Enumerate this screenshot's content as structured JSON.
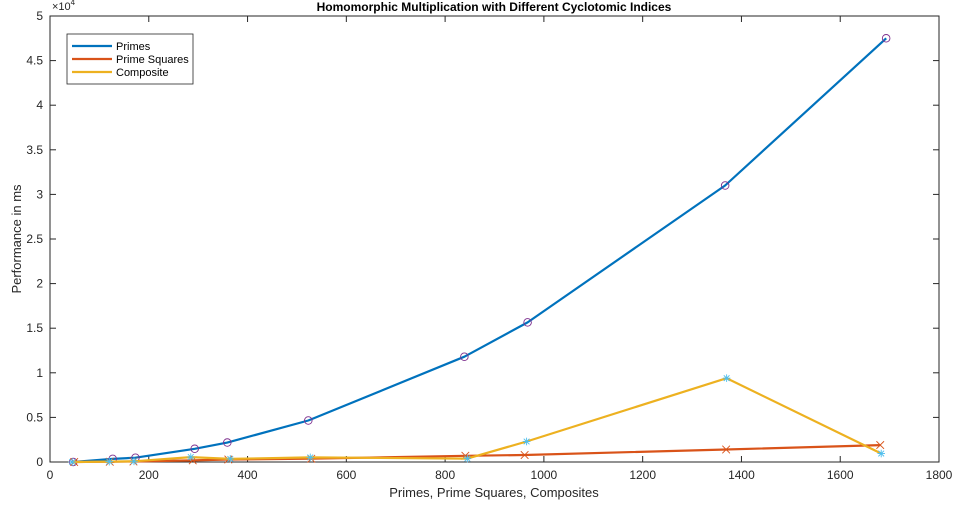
{
  "chart_data": {
    "type": "line",
    "title": "Homomorphic Multiplication with Different Cyclotomic Indices",
    "xlabel": "Primes, Prime Squares, Composites",
    "ylabel": "Performance in ms",
    "xlim": [
      0,
      1800
    ],
    "ylim": [
      0,
      50000
    ],
    "x_ticks": [
      0,
      200,
      400,
      600,
      800,
      1000,
      1200,
      1400,
      1600,
      1800
    ],
    "y_ticks": [
      0,
      5000,
      10000,
      15000,
      20000,
      25000,
      30000,
      35000,
      40000,
      45000,
      50000
    ],
    "y_tick_labels": [
      "0",
      "0.5",
      "1",
      "1.5",
      "2",
      "2.5",
      "3",
      "3.5",
      "4",
      "4.5",
      "5"
    ],
    "y_exponent_base": "×10",
    "y_exponent_power": "4",
    "legend_position": "top-left",
    "grid": false,
    "series": [
      {
        "name": "Primes",
        "color": "#0072BD",
        "marker": "circle",
        "marker_color": "#7E2F8E",
        "points": [
          [
            47,
            0
          ],
          [
            127,
            350
          ],
          [
            173,
            480
          ],
          [
            293,
            1480
          ],
          [
            359,
            2180
          ],
          [
            523,
            4650
          ],
          [
            839,
            11800
          ],
          [
            967,
            15650
          ],
          [
            1367,
            31000
          ],
          [
            1693,
            47500
          ]
        ]
      },
      {
        "name": "Prime Squares",
        "color": "#D95319",
        "marker": "x",
        "marker_color": "#D95319",
        "points": [
          [
            49,
            0
          ],
          [
            121,
            30
          ],
          [
            169,
            60
          ],
          [
            289,
            180
          ],
          [
            361,
            280
          ],
          [
            529,
            370
          ],
          [
            841,
            700
          ],
          [
            961,
            780
          ],
          [
            1369,
            1400
          ],
          [
            1681,
            1900
          ]
        ]
      },
      {
        "name": "Composite",
        "color": "#EDB120",
        "marker": "star",
        "marker_color": "#4DBEEE",
        "points": [
          [
            45,
            0
          ],
          [
            120,
            40
          ],
          [
            170,
            80
          ],
          [
            285,
            550
          ],
          [
            365,
            350
          ],
          [
            527,
            520
          ],
          [
            845,
            380
          ],
          [
            965,
            2300
          ],
          [
            1370,
            9400
          ],
          [
            1683,
            950
          ]
        ]
      }
    ]
  }
}
